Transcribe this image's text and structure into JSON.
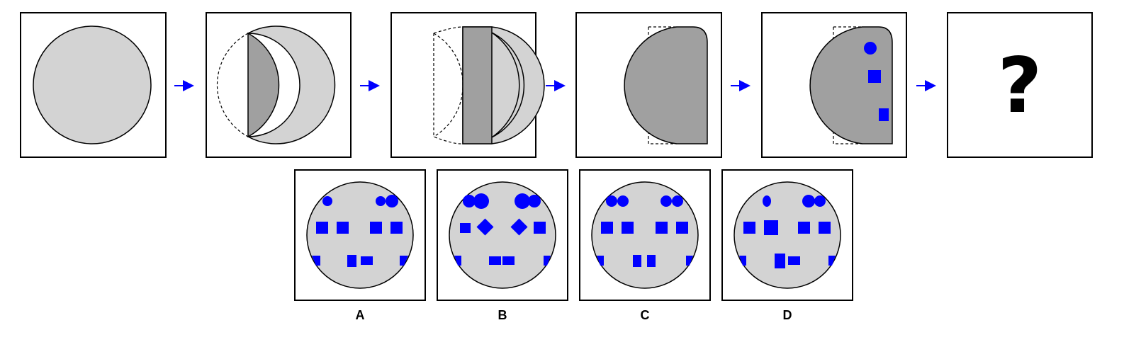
{
  "sequence": {
    "steps": [
      "unfolded-circle",
      "fold-left-over",
      "fold-again",
      "folded-strip",
      "punched-strip"
    ],
    "question_mark": "?"
  },
  "colors": {
    "paper": "#d3d3d3",
    "folded_paper": "#a0a0a0",
    "holes": "#0000ff",
    "arrows": "#0000ff"
  },
  "options": [
    {
      "label": "A"
    },
    {
      "label": "B"
    },
    {
      "label": "C"
    },
    {
      "label": "D"
    }
  ]
}
